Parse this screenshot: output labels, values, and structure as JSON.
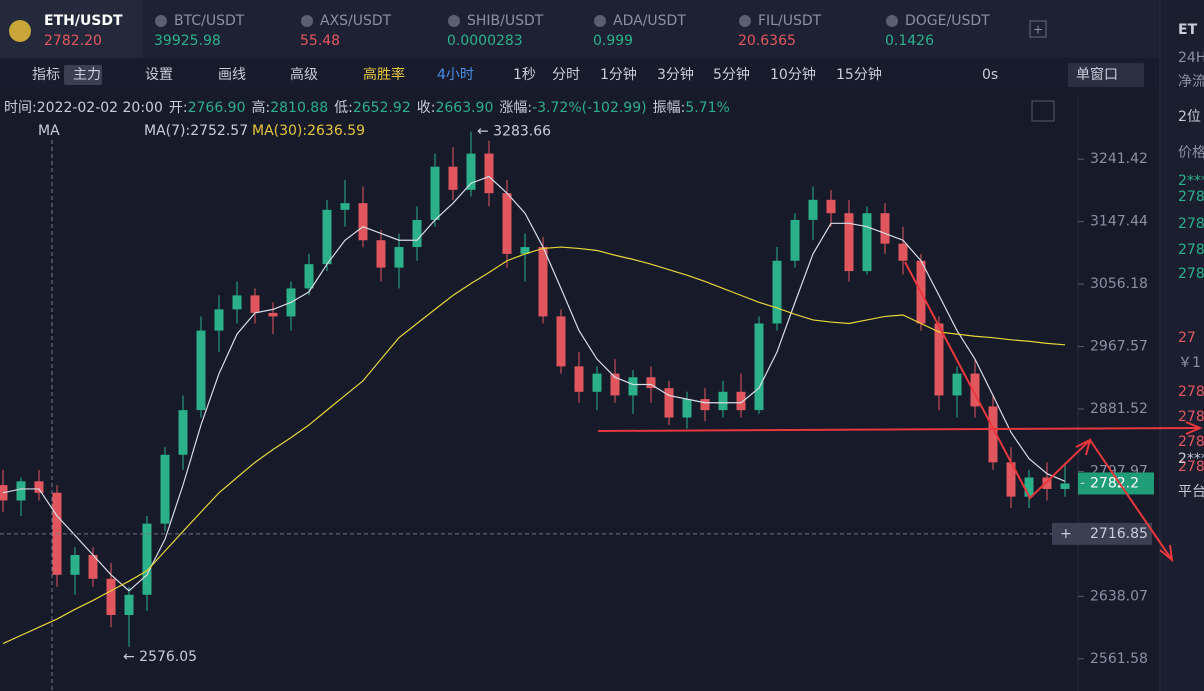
{
  "tabs": [
    {
      "symbol": "ETH/USDT",
      "price": "2782.20"
    },
    {
      "symbol": "BTC/USDT",
      "price": "39925.98"
    },
    {
      "symbol": "AXS/USDT",
      "price": "55.48"
    },
    {
      "symbol": "SHIB/USDT",
      "price": "0.0000283"
    },
    {
      "symbol": "ADA/USDT",
      "price": "0.999"
    },
    {
      "symbol": "FIL/USDT",
      "price": "20.6365"
    },
    {
      "symbol": "DOGE/USDT",
      "price": "0.1426"
    }
  ],
  "toolbar": {
    "tools": [
      "指标",
      "主力",
      "设置",
      "画线",
      "高级",
      "高胜率"
    ],
    "intervals": [
      "4小时",
      "1秒",
      "分时",
      "1分钟",
      "3分钟",
      "5分钟",
      "10分钟",
      "15分钟"
    ],
    "countdown": "0s",
    "window": "单窗口"
  },
  "info": {
    "time": "时间:2022-02-02 20:00",
    "open_label": "开:",
    "open": "2766.90",
    "high_label": "高:",
    "high": "2810.88",
    "low_label": "低:",
    "low": "2652.92",
    "close_label": "收:",
    "close": "2663.90",
    "change_label": "涨幅:",
    "change": "-3.72%(-102.99)",
    "amp_label": "振幅:",
    "amp": "5.71%"
  },
  "ma_legend": {
    "name": "MA",
    "ma7": "MA(7):2752.57",
    "ma30": "MA(30):2636.59"
  },
  "side": {
    "title": "ET",
    "h24": "24H",
    "flow": "净流",
    "depth": "2位",
    "price_head": "价格",
    "rows_top": [
      "2***",
      "278",
      "278",
      "278",
      "278"
    ],
    "big": "27",
    "cny": "￥1",
    "rows_bottom": [
      "278",
      "278",
      "278",
      "278"
    ],
    "mid": "2***",
    "platform": "平台"
  },
  "chart_data": {
    "type": "candlestick",
    "log_scale": true,
    "up_color": "#2bb08a",
    "down_color": "#e2575e",
    "open": [
      2780,
      2760,
      2785,
      2770,
      2665,
      2690,
      2660,
      2615,
      2640,
      2730,
      2820,
      2880,
      2990,
      3020,
      3040,
      3015,
      3010,
      3050,
      3085,
      3165,
      3175,
      3120,
      3080,
      3110,
      3150,
      3230,
      3195,
      3250,
      3190,
      3100,
      3110,
      3010,
      2940,
      2905,
      2930,
      2900,
      2925,
      2910,
      2870,
      2895,
      2880,
      2905,
      2880,
      3000,
      3090,
      3150,
      3180,
      3160,
      3075,
      3160,
      3115,
      3090,
      3000,
      2900,
      2930,
      2885,
      2810,
      2765,
      2790,
      2775
    ],
    "high": [
      2800,
      2790,
      2800,
      2780,
      2700,
      2700,
      2680,
      2650,
      2740,
      2830,
      2900,
      3010,
      3040,
      3060,
      3050,
      3030,
      3060,
      3100,
      3180,
      3210,
      3200,
      3135,
      3130,
      3170,
      3250,
      3260,
      3283.66,
      3270,
      3210,
      3130,
      3125,
      3020,
      2960,
      2940,
      2950,
      2935,
      2940,
      2920,
      2905,
      2910,
      2920,
      2930,
      3010,
      3110,
      3160,
      3200,
      3195,
      3180,
      3170,
      3175,
      3140,
      3100,
      3010,
      2940,
      2950,
      2900,
      2830,
      2800,
      2810,
      2810
    ],
    "low": [
      2745,
      2740,
      2760,
      2650,
      2640,
      2650,
      2600,
      2576.05,
      2620,
      2720,
      2800,
      2870,
      2960,
      3000,
      3000,
      2985,
      2990,
      3040,
      3075,
      3140,
      3110,
      3060,
      3050,
      3090,
      3140,
      3180,
      3185,
      3170,
      3080,
      3060,
      3000,
      2930,
      2890,
      2880,
      2890,
      2875,
      2890,
      2860,
      2855,
      2865,
      2870,
      2870,
      2875,
      2990,
      3080,
      3120,
      3140,
      3060,
      3070,
      3100,
      3070,
      2990,
      2880,
      2870,
      2870,
      2800,
      2750,
      2750,
      2760,
      2765
    ],
    "close": [
      2760,
      2785,
      2770,
      2665,
      2690,
      2660,
      2615,
      2640,
      2730,
      2820,
      2880,
      2990,
      3020,
      3040,
      3015,
      3010,
      3050,
      3085,
      3165,
      3175,
      3120,
      3080,
      3110,
      3150,
      3230,
      3195,
      3250,
      3190,
      3100,
      3110,
      3010,
      2940,
      2905,
      2930,
      2900,
      2925,
      2910,
      2870,
      2895,
      2880,
      2905,
      2880,
      3000,
      3090,
      3150,
      3180,
      3160,
      3075,
      3160,
      3115,
      3090,
      3000,
      2900,
      2930,
      2885,
      2810,
      2765,
      2790,
      2775,
      2782.2
    ],
    "series": [
      {
        "name": "MA(7)",
        "color": "#d8dbe6",
        "values": [
          2770,
          2775,
          2775,
          2740,
          2715,
          2690,
          2665,
          2645,
          2665,
          2710,
          2780,
          2860,
          2930,
          2985,
          3015,
          3020,
          3030,
          3045,
          3085,
          3120,
          3140,
          3130,
          3120,
          3120,
          3150,
          3175,
          3205,
          3215,
          3190,
          3160,
          3110,
          3050,
          2990,
          2950,
          2925,
          2915,
          2915,
          2900,
          2895,
          2890,
          2890,
          2890,
          2910,
          2960,
          3030,
          3100,
          3145,
          3145,
          3140,
          3130,
          3120,
          3090,
          3040,
          2990,
          2950,
          2900,
          2850,
          2815,
          2795,
          2785
        ]
      },
      {
        "name": "MA(30)",
        "color": "#e6d53a",
        "values": [
          2580,
          2590,
          2600,
          2610,
          2622,
          2633,
          2645,
          2657,
          2670,
          2695,
          2720,
          2745,
          2770,
          2790,
          2810,
          2827,
          2843,
          2860,
          2880,
          2900,
          2920,
          2950,
          2980,
          3000,
          3020,
          3040,
          3057,
          3073,
          3090,
          3100,
          3108,
          3110,
          3108,
          3105,
          3098,
          3092,
          3085,
          3077,
          3069,
          3060,
          3050,
          3040,
          3030,
          3022,
          3013,
          3005,
          3002,
          3000,
          3005,
          3010,
          3012,
          3000,
          2988,
          2985,
          2982,
          2980,
          2977,
          2975,
          2972,
          2970
        ]
      }
    ],
    "ylim": [
      2523,
      3341
    ],
    "yticks": [
      3241.42,
      3147.44,
      3056.18,
      2967.57,
      2881.52,
      2797.97,
      2638.07,
      2561.58
    ],
    "last_price": 2782.2,
    "crosshair_price": 2716.85,
    "annotations": [
      "← 3283.66",
      "← 2576.05"
    ]
  }
}
